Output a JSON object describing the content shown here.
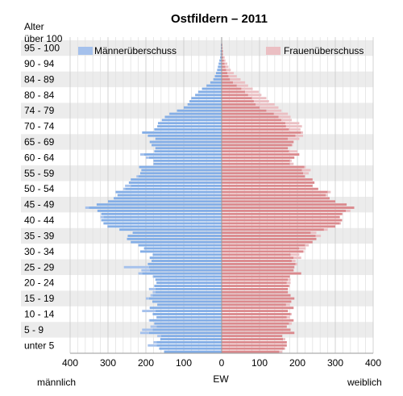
{
  "chart_data": {
    "type": "bar",
    "orientation": "horizontal-pyramid",
    "title": "Ostfildern – 2011",
    "y_axis_title": "Alter",
    "x_axis_title": "EW",
    "left_side_label": "männlich",
    "right_side_label": "weiblich",
    "x_range": [
      -400,
      400
    ],
    "x_ticks": [
      {
        "value": -400,
        "label": "400"
      },
      {
        "value": -300,
        "label": "300"
      },
      {
        "value": -200,
        "label": "200"
      },
      {
        "value": -100,
        "label": "100"
      },
      {
        "value": 0,
        "label": "0"
      },
      {
        "value": 100,
        "label": "100"
      },
      {
        "value": 200,
        "label": "200"
      },
      {
        "value": 300,
        "label": "300"
      },
      {
        "value": 400,
        "label": "400"
      }
    ],
    "age_group_labels": [
      {
        "label": "unter 5",
        "age": 0
      },
      {
        "label": "5 - 9",
        "age": 5
      },
      {
        "label": "10 - 14",
        "age": 10
      },
      {
        "label": "15 - 19",
        "age": 15
      },
      {
        "label": "20 - 24",
        "age": 20
      },
      {
        "label": "25 - 29",
        "age": 25
      },
      {
        "label": "30 - 34",
        "age": 30
      },
      {
        "label": "35 - 39",
        "age": 35
      },
      {
        "label": "40 - 44",
        "age": 40
      },
      {
        "label": "45 - 49",
        "age": 45
      },
      {
        "label": "50 - 54",
        "age": 50
      },
      {
        "label": "55 - 59",
        "age": 55
      },
      {
        "label": "60 - 64",
        "age": 60
      },
      {
        "label": "65 - 69",
        "age": 65
      },
      {
        "label": "70 - 74",
        "age": 70
      },
      {
        "label": "74 - 79",
        "age": 75
      },
      {
        "label": "80 - 84",
        "age": 80
      },
      {
        "label": "84 - 89",
        "age": 85
      },
      {
        "label": "90 - 94",
        "age": 90
      },
      {
        "label": "95 - 100",
        "age": 95
      },
      {
        "label": "über 100",
        "age": 100
      }
    ],
    "legend": [
      {
        "name": "Männerüberschuss",
        "color": "#a5c1ec",
        "position": "top-left"
      },
      {
        "name": "Frauenüberschuss",
        "color": "#ebbfc3",
        "position": "top-right"
      }
    ],
    "colors": {
      "male": "#84aee6",
      "female": "#db8a8e",
      "male_surplus": "#a5c1ec",
      "female_surplus": "#ebbfc3",
      "band": "#ececec"
    },
    "ages": [
      0,
      1,
      2,
      3,
      4,
      5,
      6,
      7,
      8,
      9,
      10,
      11,
      12,
      13,
      14,
      15,
      16,
      17,
      18,
      19,
      20,
      21,
      22,
      23,
      24,
      25,
      26,
      27,
      28,
      29,
      30,
      31,
      32,
      33,
      34,
      35,
      36,
      37,
      38,
      39,
      40,
      41,
      42,
      43,
      44,
      45,
      46,
      47,
      48,
      49,
      50,
      51,
      52,
      53,
      54,
      55,
      56,
      57,
      58,
      59,
      60,
      61,
      62,
      63,
      64,
      65,
      66,
      67,
      68,
      69,
      70,
      71,
      72,
      73,
      74,
      75,
      76,
      77,
      78,
      79,
      80,
      81,
      82,
      83,
      84,
      85,
      86,
      87,
      88,
      89,
      90,
      91,
      92,
      93,
      94,
      95,
      96,
      97,
      98,
      99,
      100
    ],
    "series": [
      {
        "name": "männlich",
        "values": [
          152,
          165,
          195,
          180,
          162,
          170,
          215,
          210,
          188,
          178,
          192,
          172,
          182,
          210,
          190,
          170,
          183,
          200,
          188,
          182,
          192,
          178,
          172,
          175,
          182,
          220,
          212,
          258,
          195,
          185,
          190,
          182,
          215,
          205,
          220,
          240,
          250,
          248,
          235,
          270,
          302,
          312,
          318,
          320,
          318,
          328,
          360,
          330,
          300,
          285,
          275,
          280,
          260,
          255,
          245,
          240,
          225,
          215,
          212,
          218,
          180,
          180,
          200,
          215,
          178,
          175,
          185,
          190,
          175,
          195,
          210,
          178,
          170,
          168,
          158,
          150,
          138,
          118,
          100,
          90,
          85,
          80,
          70,
          62,
          52,
          40,
          30,
          22,
          18,
          15,
          12,
          10,
          8,
          6,
          4,
          3,
          3,
          2,
          2,
          1,
          1
        ]
      },
      {
        "name": "weiblich",
        "values": [
          160,
          168,
          172,
          172,
          168,
          160,
          192,
          182,
          172,
          185,
          190,
          180,
          185,
          175,
          190,
          180,
          185,
          192,
          182,
          175,
          175,
          180,
          182,
          182,
          180,
          210,
          190,
          192,
          200,
          195,
          210,
          205,
          218,
          222,
          230,
          240,
          250,
          262,
          250,
          280,
          300,
          315,
          318,
          312,
          320,
          340,
          350,
          330,
          300,
          285,
          280,
          288,
          255,
          240,
          245,
          240,
          220,
          230,
          235,
          222,
          190,
          185,
          192,
          205,
          200,
          175,
          188,
          190,
          205,
          215,
          215,
          208,
          212,
          205,
          185,
          182,
          175,
          158,
          150,
          140,
          125,
          118,
          105,
          98,
          82,
          70,
          62,
          50,
          40,
          32,
          24,
          18,
          15,
          10,
          8,
          4,
          4,
          3,
          2,
          1,
          1
        ]
      }
    ]
  }
}
